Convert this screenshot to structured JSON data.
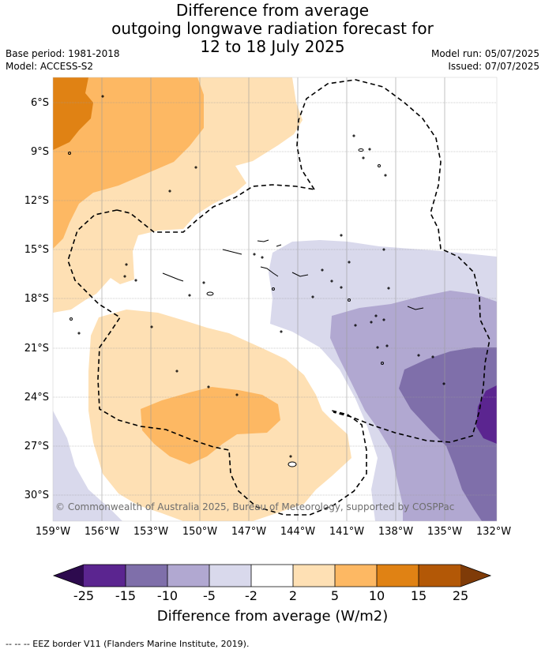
{
  "title": {
    "line1": "Difference from average",
    "line2": "outgoing longwave radiation forecast for",
    "line3": "12 to 18 July 2025"
  },
  "meta": {
    "base_period": "Base period: 1981-2018",
    "model": "Model: ACCESS-S2",
    "model_run": "Model run: 05/07/2025",
    "issued": "Issued: 07/07/2025"
  },
  "map": {
    "latitude_labels": [
      "6°S",
      "9°S",
      "12°S",
      "15°S",
      "18°S",
      "21°S",
      "24°S",
      "27°S",
      "30°S"
    ],
    "longitude_labels": [
      "159°W",
      "156°W",
      "153°W",
      "150°W",
      "147°W",
      "144°W",
      "141°W",
      "138°W",
      "135°W",
      "132°W"
    ],
    "copyright": "© Commonwealth of Australia 2025, Bureau of Meteorology, supported by COSPPac"
  },
  "colorbar": {
    "title": "Difference from average (W/m2)",
    "ticks": [
      "-25",
      "-15",
      "-10",
      "-5",
      "-2",
      "2",
      "5",
      "10",
      "15",
      "25"
    ],
    "colors": {
      "below_min": "#2d0a4e",
      "c1": "#5b2590",
      "c2": "#7f6faa",
      "c3": "#b1a8d1",
      "c4": "#d9d9ec",
      "c5": "#ffffff",
      "c6": "#fee0b4",
      "c7": "#fdb863",
      "c8": "#e08214",
      "c9": "#b35806",
      "above_max": "#7f3b08"
    }
  },
  "legend_note": "-- -- -- EEZ border V11 (Flanders Marine Institute, 2019)."
}
